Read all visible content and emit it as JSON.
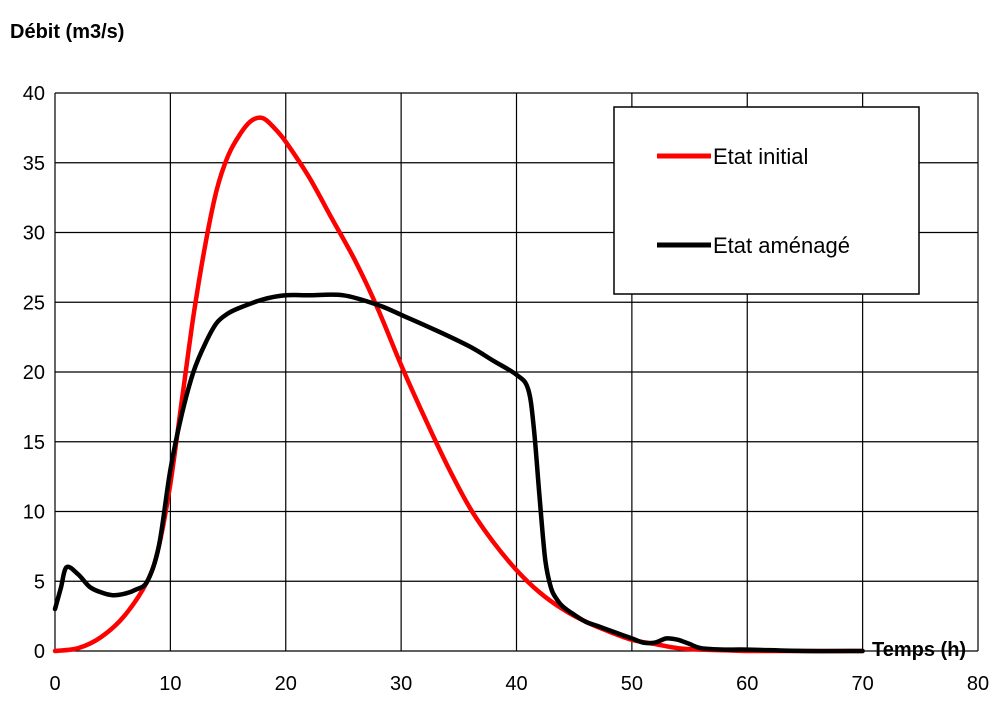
{
  "chart_data": {
    "type": "line",
    "title": "",
    "ylabel": "Débit (m3/s)",
    "xlabel": "Temps (h)",
    "xlim": [
      0,
      80
    ],
    "ylim": [
      0,
      40
    ],
    "xticks": [
      0,
      10,
      20,
      30,
      40,
      50,
      60,
      70,
      80
    ],
    "yticks": [
      0,
      5,
      10,
      15,
      20,
      25,
      30,
      35,
      40
    ],
    "grid": true,
    "legend": "top-right",
    "series": [
      {
        "name": "Etat initial",
        "color": "#ff0000",
        "x": [
          0,
          2,
          4,
          6,
          8,
          9,
          10,
          11,
          12,
          13,
          14,
          15,
          16,
          17,
          18,
          19,
          20,
          22,
          24,
          26,
          28,
          30,
          32,
          34,
          36,
          38,
          40,
          42,
          44,
          46,
          48,
          50,
          52,
          54,
          56,
          58,
          60,
          62,
          65,
          70
        ],
        "y": [
          0,
          0.2,
          1,
          2.5,
          5,
          7.5,
          12,
          18,
          24,
          29,
          33,
          35.5,
          37,
          38,
          38.2,
          37.5,
          36.5,
          34,
          31,
          28,
          24.5,
          20.5,
          16.8,
          13.3,
          10.2,
          7.8,
          5.8,
          4.2,
          3,
          2.1,
          1.4,
          0.8,
          0.5,
          0.2,
          0.1,
          0.05,
          0,
          0,
          0,
          0
        ]
      },
      {
        "name": "Etat aménagé",
        "color": "#000000",
        "x": [
          0,
          0.5,
          1,
          2,
          3,
          4,
          5,
          6,
          7,
          8,
          9,
          10,
          11,
          12,
          13,
          14,
          15,
          16,
          18,
          20,
          22,
          25,
          28,
          30,
          33,
          36,
          38,
          40,
          41,
          41.5,
          42,
          42.5,
          43,
          43.5,
          44,
          45,
          46,
          47,
          48,
          50,
          51,
          52,
          53,
          54,
          55,
          56,
          58,
          60,
          65,
          70
        ],
        "y": [
          3,
          4.5,
          6,
          5.5,
          4.6,
          4.2,
          4,
          4.1,
          4.4,
          5,
          7.5,
          13,
          17,
          20,
          22,
          23.5,
          24.2,
          24.6,
          25.2,
          25.5,
          25.5,
          25.5,
          24.8,
          24.1,
          23,
          21.8,
          20.8,
          19.8,
          18.8,
          16,
          11,
          6.5,
          4.5,
          3.7,
          3.2,
          2.6,
          2.1,
          1.8,
          1.5,
          0.9,
          0.6,
          0.6,
          0.9,
          0.8,
          0.5,
          0.2,
          0.1,
          0.1,
          0,
          0
        ]
      }
    ]
  }
}
